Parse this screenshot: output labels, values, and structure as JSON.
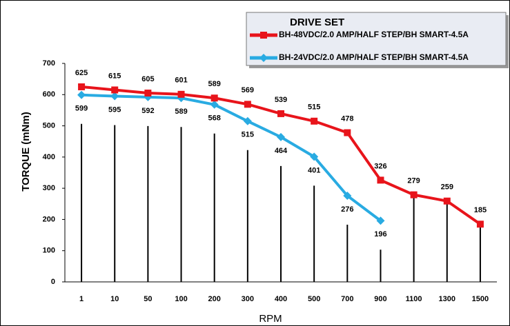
{
  "chart_data": {
    "type": "line",
    "x_label": "RPM",
    "y_label": "TORQUE (mNm)",
    "legend_title": "DRIVE SET",
    "categories": [
      "1",
      "10",
      "50",
      "100",
      "200",
      "300",
      "400",
      "500",
      "700",
      "900",
      "1100",
      "1300",
      "1500"
    ],
    "series": [
      {
        "name": "BH-48VDC/2.0 AMP/HALF STEP/BH SMART-4.5A",
        "color": "#e8141b",
        "marker": "square",
        "values": [
          625,
          615,
          605,
          601,
          589,
          569,
          539,
          515,
          478,
          326,
          279,
          259,
          185
        ]
      },
      {
        "name": "BH-24VDC/2.0 AMP/HALF STEP/BH SMART-4.5A",
        "color": "#29abe2",
        "marker": "diamond",
        "values": [
          599,
          595,
          592,
          589,
          568,
          515,
          464,
          401,
          276,
          196,
          null,
          null,
          null
        ]
      }
    ],
    "ylim": [
      0,
      700
    ],
    "yticks": [
      0,
      100,
      200,
      300,
      400,
      500,
      600,
      700
    ],
    "grid": false
  }
}
